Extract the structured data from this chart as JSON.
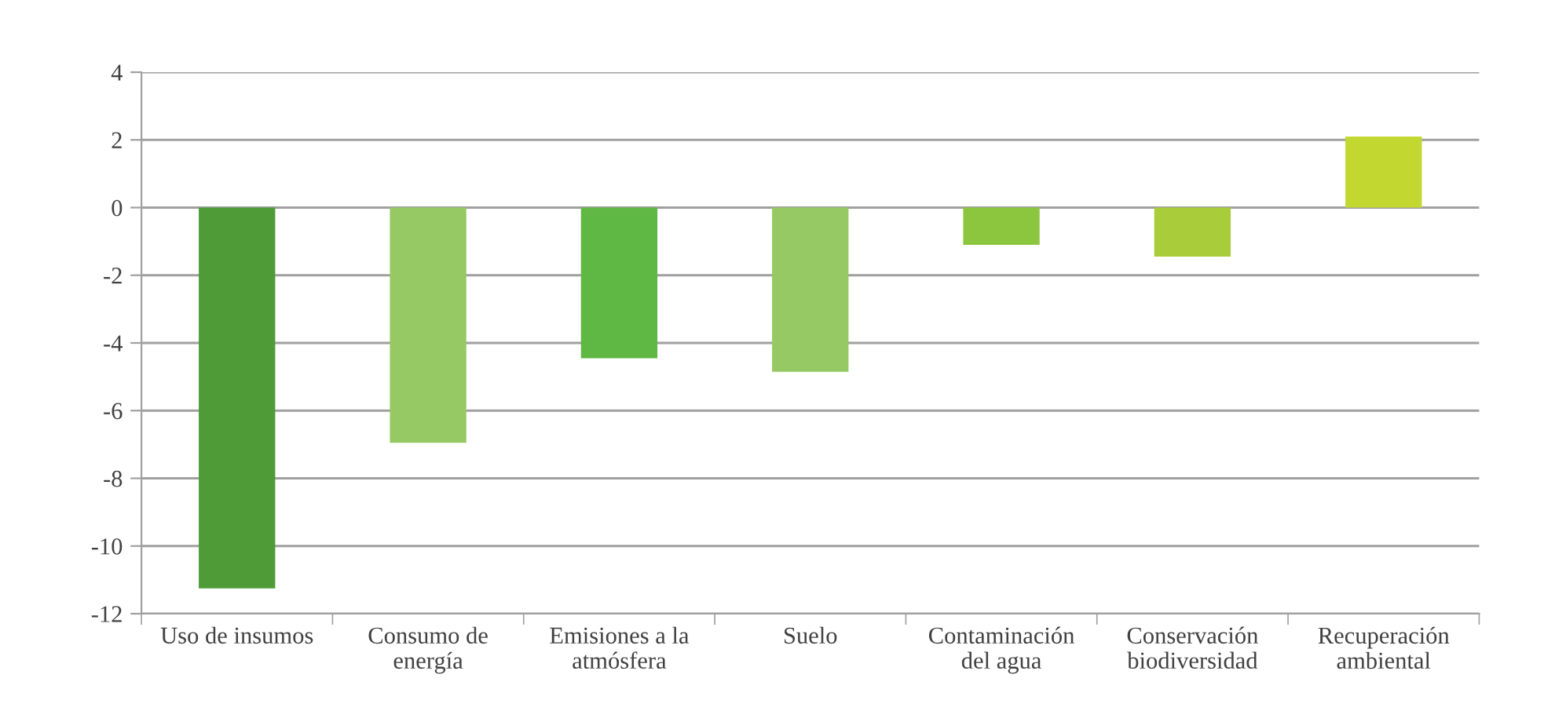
{
  "chart_data": {
    "type": "bar",
    "categories": [
      "Uso de insumos",
      "Consumo de\nenergía",
      "Emisiones a la\natmósfera",
      "Suelo",
      "Contaminación\ndel agua",
      "Conservación\nbiodiversidad",
      "Recuperación\nambiental"
    ],
    "values": [
      -11.25,
      -6.95,
      -4.45,
      -4.85,
      -1.1,
      -1.45,
      2.1
    ],
    "colors": [
      "#4f9b38",
      "#96c963",
      "#60b844",
      "#96c963",
      "#8cc63f",
      "#a8cc3a",
      "#c2d831"
    ],
    "ylim": [
      -12,
      4
    ],
    "yticks": [
      -12,
      -10,
      -8,
      -6,
      -4,
      -2,
      0,
      2,
      4
    ],
    "grid": "y",
    "legend": false
  }
}
